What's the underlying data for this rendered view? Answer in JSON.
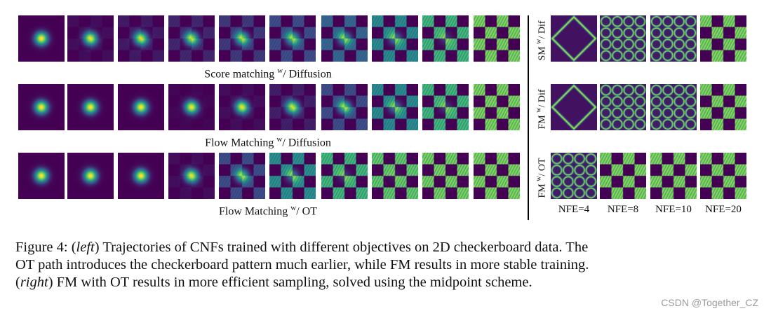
{
  "panels": {
    "left_rows": [
      {
        "caption_pre": "Score matching ",
        "caption_sup": "w",
        "caption_post": "/ Diffusion",
        "stages": [
          0,
          0.05,
          0.1,
          0.15,
          0.22,
          0.3,
          0.42,
          0.6,
          0.82,
          1.0
        ]
      },
      {
        "caption_pre": "Flow Matching ",
        "caption_sup": "w",
        "caption_post": "/ Diffusion",
        "stages": [
          0,
          0,
          0,
          0.02,
          0.05,
          0.12,
          0.3,
          0.6,
          0.82,
          1.0
        ]
      },
      {
        "caption_pre": "Flow Matching ",
        "caption_sup": "w",
        "caption_post": "/ OT",
        "stages": [
          0,
          0,
          0,
          0.05,
          0.3,
          0.62,
          0.82,
          0.93,
          0.98,
          1.0
        ]
      }
    ],
    "right_rows": [
      {
        "label_pre": "SM ",
        "label_sup": "w",
        "label_post": "/ Dif"
      },
      {
        "label_pre": "FM ",
        "label_sup": "w",
        "label_post": "/ Dif"
      },
      {
        "label_pre": "FM ",
        "label_sup": "w",
        "label_post": "/ OT"
      }
    ],
    "nfe_labels": [
      "NFE=4",
      "NFE=8",
      "NFE=10",
      "NFE=20"
    ]
  },
  "caption": {
    "figure_label": "Figure 4: ",
    "left_word": "left",
    "part1": " Trajectories of CNFs trained with different objectives on 2D checkerboard data. The",
    "line2": "OT path introduces the checkerboard pattern much earlier, while FM results in more stable training.",
    "right_word": "right",
    "part3": " FM with OT results in more efficient sampling, solved using the midpoint scheme."
  },
  "watermark": "CSDN @Together_CZ",
  "colors": {
    "bg": "#440154",
    "mid": "#21918c",
    "high": "#fde725"
  }
}
